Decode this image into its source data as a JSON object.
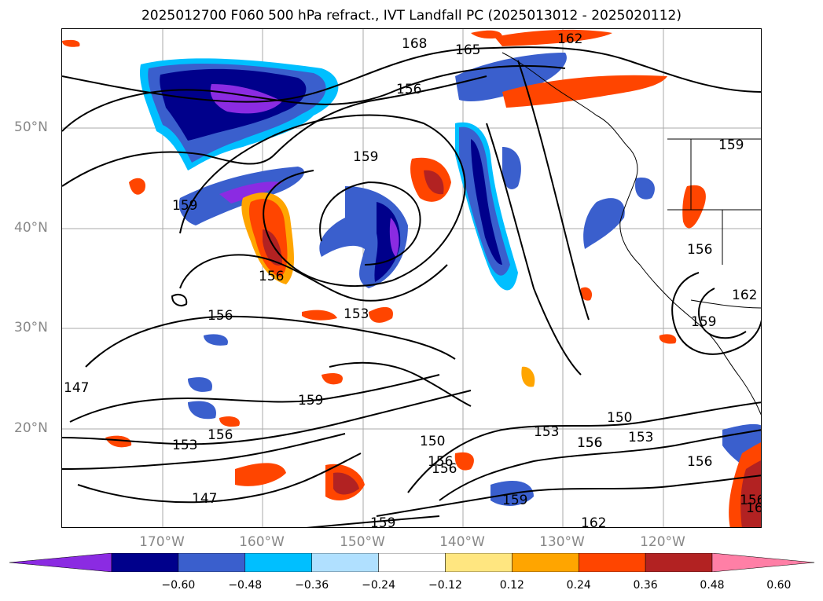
{
  "title": "2025012700 F060 500 hPa refract., IVT Landfall PC (2025013012 - 2025020112)",
  "lat_labels": [
    "50°N",
    "40°N",
    "30°N",
    "20°N"
  ],
  "lon_labels": [
    "170°W",
    "160°W",
    "150°W",
    "140°W",
    "130°W",
    "120°W"
  ],
  "colorbar": {
    "ticks": [
      "−0.60",
      "−0.48",
      "−0.36",
      "−0.24",
      "−0.12",
      "0.12",
      "0.24",
      "0.36",
      "0.48",
      "0.60"
    ],
    "colors": [
      "#8b2be2",
      "#00008b",
      "#3a5fcd",
      "#00bfff",
      "#b0e0ff",
      "#ffffff",
      "#ffe680",
      "#ffa500",
      "#ff4500",
      "#b22222",
      "#ff7fa6"
    ]
  },
  "contour_labels": [
    "168",
    "165",
    "162",
    "156",
    "159",
    "159",
    "156",
    "153",
    "156",
    "153",
    "156",
    "159",
    "150",
    "156",
    "153",
    "150",
    "156",
    "156",
    "162",
    "156",
    "159",
    "147",
    "159",
    "162",
    "159",
    "147",
    "156",
    "162",
    "159",
    "156",
    "153",
    "156"
  ]
}
